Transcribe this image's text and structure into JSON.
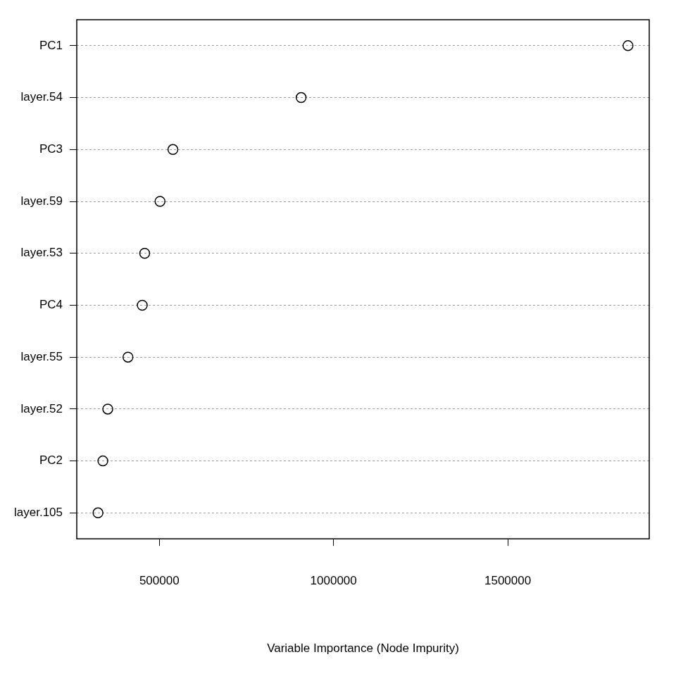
{
  "chart_data": {
    "type": "dot",
    "x_label": "Variable Importance (Node Impurity)",
    "categories": [
      "PC1",
      "layer.54",
      "PC3",
      "layer.59",
      "layer.53",
      "PC4",
      "layer.55",
      "layer.52",
      "PC2",
      "layer.105"
    ],
    "values": [
      1845000,
      907000,
      539000,
      502000,
      458000,
      451000,
      410000,
      352000,
      338000,
      324000
    ],
    "color": "#000000",
    "marker": "circle",
    "xlim": [
      263000,
      1906000
    ],
    "xticks": [
      500000,
      1000000,
      1500000
    ],
    "grid": true
  }
}
